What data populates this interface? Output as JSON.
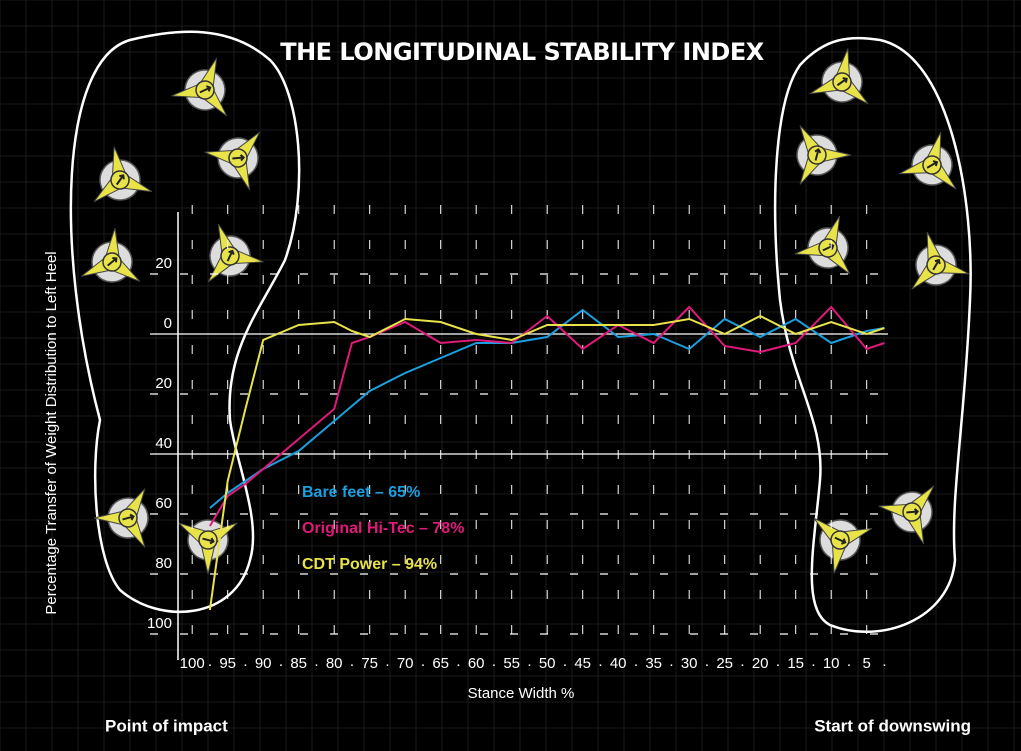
{
  "chart_data": {
    "type": "line",
    "title": "THE LONGITUDINAL STABILITY INDEX",
    "y_label": "Percentage Transfer of Weight Distribution to Left Heel",
    "x_label": "Stance Width %",
    "left_caption": "Point of impact",
    "right_caption": "Start of downswing",
    "x": [
      97.5,
      95,
      92.5,
      90,
      85,
      80,
      77.5,
      75,
      70,
      65,
      60,
      55,
      50,
      45,
      40,
      35,
      30,
      25,
      20,
      15,
      10,
      5,
      2.5
    ],
    "series": [
      {
        "name": "Bare feet – 65%",
        "color": "#1b9fe0",
        "values": [
          58,
          53,
          49,
          45,
          39,
          29,
          24,
          19,
          13,
          8,
          3,
          3,
          1,
          -8,
          1,
          0,
          5,
          -5,
          1,
          -5,
          3,
          -1,
          -2
        ]
      },
      {
        "name": "Original Hi-Tec – 78%",
        "color": "#e0197a",
        "values": [
          64,
          54,
          50,
          45,
          35,
          25,
          3,
          1,
          -4,
          3,
          2,
          3,
          -6,
          5,
          -3,
          3,
          -9,
          4,
          6,
          3,
          -9,
          5,
          3
        ]
      },
      {
        "name": "CDT Power – 94%",
        "color": "#e9e34a",
        "values": [
          92,
          49,
          25,
          2,
          -3,
          -4,
          -1,
          1,
          -5,
          -4,
          0,
          2,
          -3,
          -3,
          -3,
          -3,
          -5,
          0,
          -6,
          0,
          -4,
          0,
          -2
        ]
      }
    ],
    "xlim": [
      102,
      2
    ],
    "xticks": [
      100,
      95,
      90,
      85,
      80,
      75,
      70,
      65,
      60,
      55,
      50,
      45,
      40,
      35,
      30,
      25,
      20,
      15,
      10,
      5
    ],
    "ylim": [
      -40,
      100
    ],
    "yticks": [
      {
        "value": -20,
        "label": "20"
      },
      0,
      20,
      40,
      60,
      80,
      100
    ]
  }
}
